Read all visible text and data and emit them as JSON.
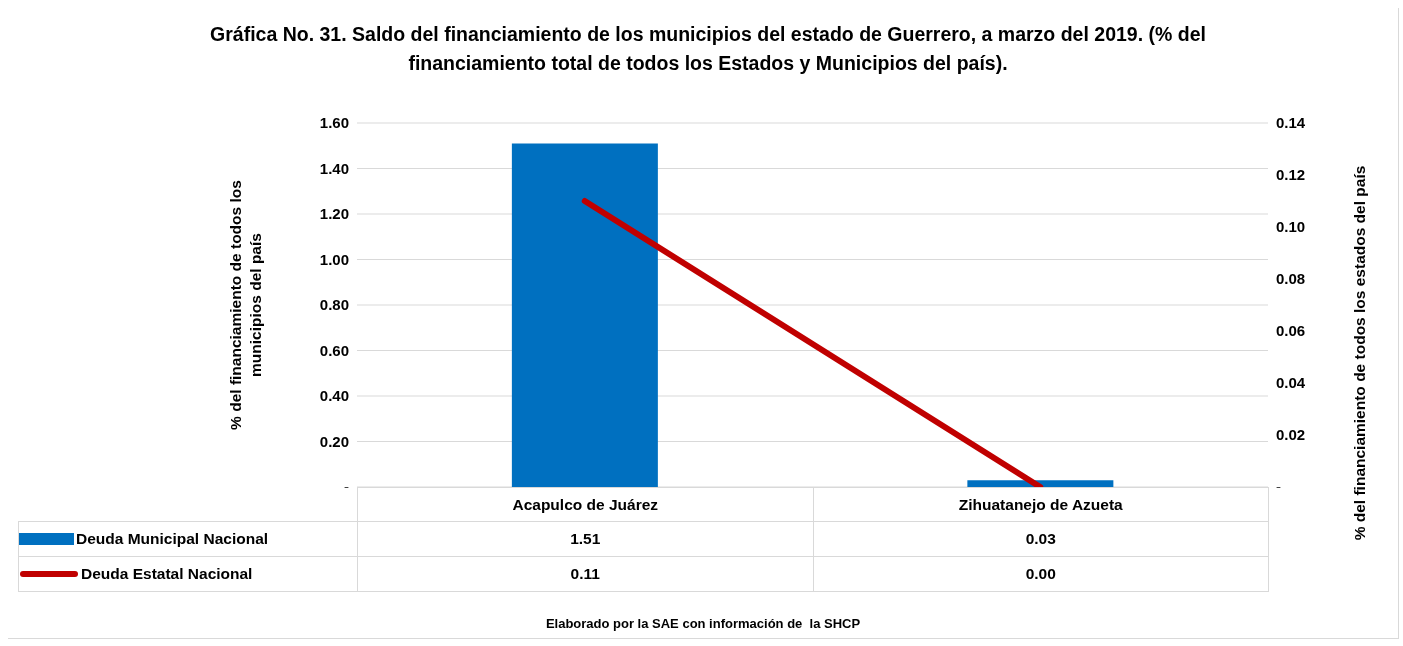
{
  "chart_data": {
    "type": "bar",
    "title": "Gráfica No. 31. Saldo del financiamiento de los municipios del estado de Guerrero, a marzo del 2019. (% del  financiamiento total de todos los Estados y Municipios del país).",
    "ylabel": "% del financiamiento  de todos los municipios del país",
    "y2label": "% del financiamiento de todos los estados del país",
    "categories": [
      "Acapulco de Juárez",
      "Zihuatanejo de Azueta"
    ],
    "series": [
      {
        "name": "Deuda Municipal Nacional",
        "color": "#0070c0",
        "values": [
          1.51,
          0.03
        ],
        "value_labels": [
          "1.51",
          "0.03"
        ]
      },
      {
        "name": "Deuda Estatal Nacional",
        "type": "line",
        "axis": "y2",
        "color": "#c00000",
        "values": [
          0.11,
          0.0
        ],
        "value_labels": [
          "0.11",
          "0.00"
        ]
      }
    ],
    "ylim": [
      0,
      1.6
    ],
    "yticks": [
      {
        "value": 0,
        "label": "-"
      },
      {
        "value": 0.2,
        "label": "0.20"
      },
      {
        "value": 0.4,
        "label": "0.40"
      },
      {
        "value": 0.6,
        "label": "0.60"
      },
      {
        "value": 0.8,
        "label": "0.80"
      },
      {
        "value": 1.0,
        "label": "1.00"
      },
      {
        "value": 1.2,
        "label": "1.20"
      },
      {
        "value": 1.4,
        "label": "1.40"
      },
      {
        "value": 1.6,
        "label": "1.60"
      }
    ],
    "y2lim": [
      0,
      0.14
    ],
    "y2ticks": [
      {
        "value": 0,
        "label": "-"
      },
      {
        "value": 0.02,
        "label": "0.02"
      },
      {
        "value": 0.04,
        "label": "0.04"
      },
      {
        "value": 0.06,
        "label": "0.06"
      },
      {
        "value": 0.08,
        "label": "0.08"
      },
      {
        "value": 0.1,
        "label": "0.10"
      },
      {
        "value": 0.12,
        "label": "0.12"
      },
      {
        "value": 0.14,
        "label": "0.14"
      }
    ],
    "grid": "y",
    "legend": "bottom",
    "marker": "none",
    "line_style": "solid",
    "annotations": [
      "Elaborado por la SAE con información de  la SHCP"
    ]
  }
}
